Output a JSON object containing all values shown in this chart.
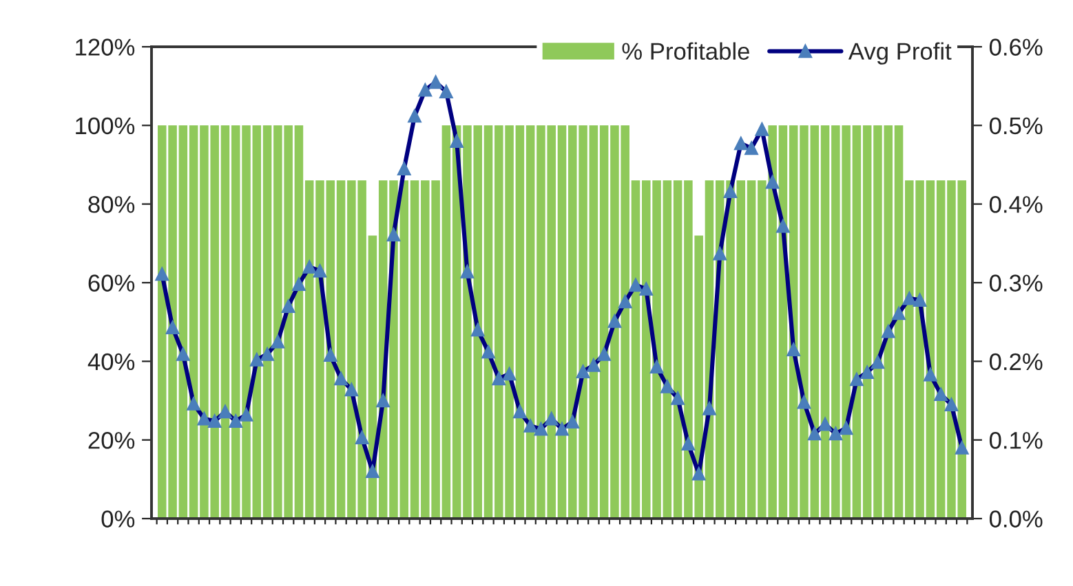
{
  "chart_data": {
    "type": "bar",
    "categories": [
      null,
      null,
      null,
      null,
      null,
      null,
      null,
      null,
      null,
      null,
      null,
      null,
      null,
      null,
      null,
      null,
      null,
      null,
      null,
      null,
      null,
      null,
      null,
      null,
      null,
      null,
      null,
      null,
      null,
      null,
      null,
      null,
      null,
      null,
      null,
      null,
      null,
      null,
      null,
      null,
      null,
      null,
      null,
      null,
      null,
      null,
      null,
      null,
      null,
      null,
      null,
      null,
      null,
      null,
      null,
      null,
      null,
      null,
      null,
      null,
      null,
      null,
      null,
      null,
      null,
      null,
      null,
      null,
      null,
      null,
      null,
      null,
      null,
      null,
      null,
      null,
      null
    ],
    "series": [
      {
        "name": "% Profitable",
        "color": "#8fc95a",
        "values": [
          100,
          100,
          100,
          100,
          100,
          100,
          100,
          100,
          100,
          100,
          100,
          100,
          100,
          100,
          86,
          86,
          86,
          86,
          86,
          86,
          72,
          86,
          86,
          86,
          86,
          86,
          86,
          100,
          100,
          100,
          100,
          100,
          100,
          100,
          100,
          100,
          100,
          100,
          100,
          100,
          100,
          100,
          100,
          100,
          100,
          86,
          86,
          86,
          86,
          86,
          86,
          72,
          86,
          86,
          86,
          86,
          86,
          86,
          100,
          100,
          100,
          100,
          100,
          100,
          100,
          100,
          100,
          100,
          100,
          100,
          100,
          86,
          86,
          86,
          86,
          86,
          86
        ]
      },
      {
        "name": "Avg Profit",
        "type": "line",
        "axis": "y2",
        "color": "#000080",
        "marker": "triangle",
        "line_style": "solid",
        "values": [
          0.311,
          0.243,
          0.209,
          0.146,
          0.127,
          0.124,
          0.136,
          0.124,
          0.132,
          0.202,
          0.209,
          0.225,
          0.27,
          0.298,
          0.32,
          0.315,
          0.208,
          0.178,
          0.164,
          0.103,
          0.06,
          0.15,
          0.361,
          0.445,
          0.512,
          0.545,
          0.555,
          0.543,
          0.48,
          0.314,
          0.24,
          0.212,
          0.178,
          0.184,
          0.136,
          0.118,
          0.114,
          0.127,
          0.114,
          0.123,
          0.187,
          0.195,
          0.209,
          0.251,
          0.276,
          0.297,
          0.292,
          0.193,
          0.168,
          0.153,
          0.095,
          0.057,
          0.14,
          0.337,
          0.416,
          0.477,
          0.471,
          0.495,
          0.428,
          0.372,
          0.215,
          0.148,
          0.108,
          0.12,
          0.108,
          0.115,
          0.177,
          0.186,
          0.199,
          0.238,
          0.261,
          0.28,
          0.278,
          0.183,
          0.158,
          0.145,
          0.09
        ]
      }
    ],
    "ylim": [
      0,
      120
    ],
    "yticks": [
      {
        "value": 0,
        "label": "0%"
      },
      {
        "value": 20,
        "label": "20%"
      },
      {
        "value": 40,
        "label": "40%"
      },
      {
        "value": 60,
        "label": "60%"
      },
      {
        "value": 80,
        "label": "80%"
      },
      {
        "value": 100,
        "label": "100%"
      },
      {
        "value": 120,
        "label": "120%"
      }
    ],
    "y2lim": [
      0,
      0.6
    ],
    "y2ticks": [
      {
        "value": 0,
        "label": "0.0%"
      },
      {
        "value": 0.1,
        "label": "0.1%"
      },
      {
        "value": 0.2,
        "label": "0.2%"
      },
      {
        "value": 0.3,
        "label": "0.3%"
      },
      {
        "value": 0.4,
        "label": "0.4%"
      },
      {
        "value": 0.5,
        "label": "0.5%"
      },
      {
        "value": 0.6,
        "label": "0.6%"
      }
    ],
    "grid": false,
    "legend": "top right"
  }
}
